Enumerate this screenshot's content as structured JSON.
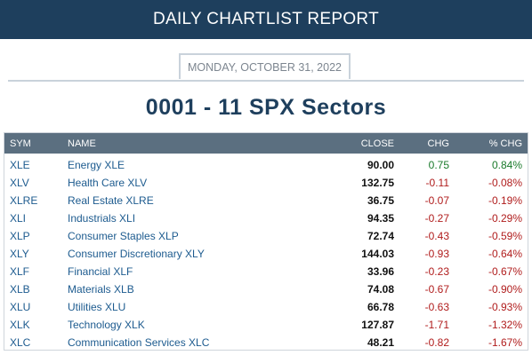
{
  "header": {
    "title": "DAILY CHARTLIST REPORT"
  },
  "report": {
    "date": "MONDAY, OCTOBER 31, 2022",
    "title": "0001 - 11 SPX Sectors"
  },
  "table": {
    "columns": [
      "SYM",
      "NAME",
      "CLOSE",
      "CHG",
      "% CHG"
    ],
    "rows": [
      {
        "sym": "XLE",
        "name": "Energy XLE",
        "close": "90.00",
        "chg": "0.75",
        "pct": "0.84%",
        "dir": "pos"
      },
      {
        "sym": "XLV",
        "name": "Health Care XLV",
        "close": "132.75",
        "chg": "-0.11",
        "pct": "-0.08%",
        "dir": "neg"
      },
      {
        "sym": "XLRE",
        "name": "Real Estate XLRE",
        "close": "36.75",
        "chg": "-0.07",
        "pct": "-0.19%",
        "dir": "neg"
      },
      {
        "sym": "XLI",
        "name": "Industrials XLI",
        "close": "94.35",
        "chg": "-0.27",
        "pct": "-0.29%",
        "dir": "neg"
      },
      {
        "sym": "XLP",
        "name": "Consumer Staples XLP",
        "close": "72.74",
        "chg": "-0.43",
        "pct": "-0.59%",
        "dir": "neg"
      },
      {
        "sym": "XLY",
        "name": "Consumer Discretionary XLY",
        "close": "144.03",
        "chg": "-0.93",
        "pct": "-0.64%",
        "dir": "neg"
      },
      {
        "sym": "XLF",
        "name": "Financial XLF",
        "close": "33.96",
        "chg": "-0.23",
        "pct": "-0.67%",
        "dir": "neg"
      },
      {
        "sym": "XLB",
        "name": "Materials XLB",
        "close": "74.08",
        "chg": "-0.67",
        "pct": "-0.90%",
        "dir": "neg"
      },
      {
        "sym": "XLU",
        "name": "Utilities XLU",
        "close": "66.78",
        "chg": "-0.63",
        "pct": "-0.93%",
        "dir": "neg"
      },
      {
        "sym": "XLK",
        "name": "Technology XLK",
        "close": "127.87",
        "chg": "-1.71",
        "pct": "-1.32%",
        "dir": "neg"
      },
      {
        "sym": "XLC",
        "name": "Communication Services XLC",
        "close": "48.21",
        "chg": "-0.82",
        "pct": "-1.67%",
        "dir": "neg"
      }
    ]
  },
  "colors": {
    "header_bg": "#1e3f5d",
    "table_header_bg": "#5b6f80",
    "link": "#1d5b8f",
    "positive": "#1a7a2b",
    "negative": "#b01c1c"
  }
}
